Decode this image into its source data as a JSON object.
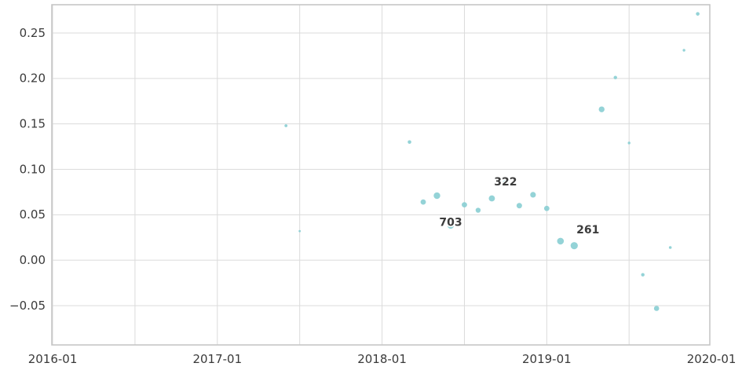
{
  "chart_data": {
    "type": "scatter",
    "title": "",
    "xlabel": "",
    "ylabel": "",
    "grid": true,
    "legend": null,
    "xlim_years": [
      2015.995,
      2019.99
    ],
    "ylim": [
      -0.0932,
      0.2811
    ],
    "x_major_ticks": [
      {
        "date": "2016-01",
        "label": "2016-01"
      },
      {
        "date": "2017-01",
        "label": "2017-01"
      },
      {
        "date": "2018-01",
        "label": "2018-01"
      },
      {
        "date": "2019-01",
        "label": "2019-01"
      },
      {
        "date": "2020-01",
        "label": "2020-01"
      }
    ],
    "x_minor_gridlines": [
      "2016-07",
      "2017-07",
      "2018-07",
      "2019-07"
    ],
    "y_ticks": [
      {
        "value": 0.25,
        "label": "0.25"
      },
      {
        "value": 0.2,
        "label": "0.20"
      },
      {
        "value": 0.15,
        "label": "0.15"
      },
      {
        "value": 0.1,
        "label": "0.10"
      },
      {
        "value": 0.05,
        "label": "0.05"
      },
      {
        "value": 0.0,
        "label": "0.00"
      },
      {
        "value": -0.05,
        "label": "−0.05"
      }
    ],
    "points": [
      {
        "date": "2017-06",
        "value": 0.148,
        "r": 1.9
      },
      {
        "date": "2017-07",
        "value": 0.032,
        "r": 1.4
      },
      {
        "date": "2018-03",
        "value": 0.13,
        "r": 2.3
      },
      {
        "date": "2018-04",
        "value": 0.064,
        "r": 3.4
      },
      {
        "date": "2018-05",
        "value": 0.071,
        "r": 4.2
      },
      {
        "date": "2018-06",
        "value": 0.038,
        "r": 4.0
      },
      {
        "date": "2018-07",
        "value": 0.061,
        "r": 3.4
      },
      {
        "date": "2018-08",
        "value": 0.055,
        "r": 3.2
      },
      {
        "date": "2018-09",
        "value": 0.068,
        "r": 3.9
      },
      {
        "date": "2018-10",
        "value": 0.085,
        "r": 3.8
      },
      {
        "date": "2018-11",
        "value": 0.06,
        "r": 3.5
      },
      {
        "date": "2018-12",
        "value": 0.072,
        "r": 3.6
      },
      {
        "date": "2019-01",
        "value": 0.057,
        "r": 3.4
      },
      {
        "date": "2019-02",
        "value": 0.021,
        "r": 4.3
      },
      {
        "date": "2019-03",
        "value": 0.016,
        "r": 4.6
      },
      {
        "date": "2019-04",
        "value": 0.034,
        "r": 3.5
      },
      {
        "date": "2019-05",
        "value": 0.166,
        "r": 3.7
      },
      {
        "date": "2019-06",
        "value": 0.201,
        "r": 2.2
      },
      {
        "date": "2019-07",
        "value": 0.129,
        "r": 1.7
      },
      {
        "date": "2019-08",
        "value": -0.016,
        "r": 2.2
      },
      {
        "date": "2019-09",
        "value": -0.053,
        "r": 3.3
      },
      {
        "date": "2019-10",
        "value": 0.014,
        "r": 1.8
      },
      {
        "date": "2019-11",
        "value": 0.231,
        "r": 1.7
      },
      {
        "date": "2019-12",
        "value": 0.271,
        "r": 2.3
      }
    ],
    "annotations": [
      {
        "text": "703",
        "date": "2018-06",
        "value": 0.042
      },
      {
        "text": "322",
        "date": "2018-10",
        "value": 0.0866
      },
      {
        "text": "261",
        "date": "2019-04",
        "value": 0.0337
      }
    ]
  },
  "colors": {
    "point_fill": "#8BCFD4",
    "grid": "#DBDBDB",
    "spine": "#C3C3C3",
    "tick_text": "#3A3A3A",
    "annotation_text": "#3C3C3C",
    "annotation_outline": "#FFFFFF",
    "background": "#FFFFFF"
  }
}
